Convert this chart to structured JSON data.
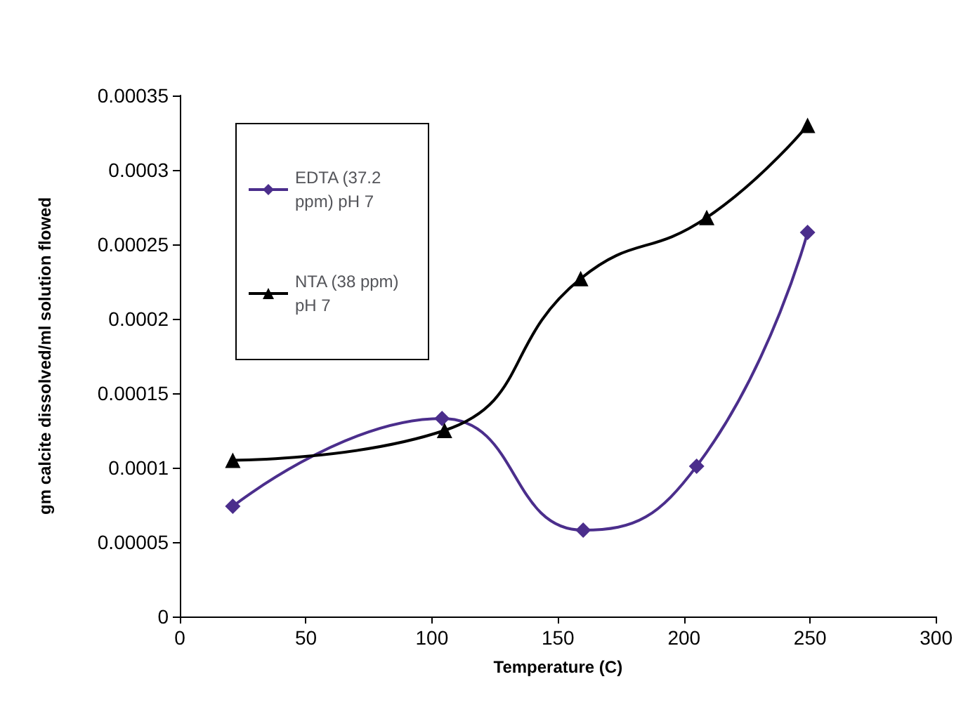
{
  "chart_data": {
    "type": "line",
    "xlabel": "Temperature (C)",
    "ylabel": "gm calcite dissolved/ml solution flowed",
    "xlim": [
      0,
      300
    ],
    "xticks": [
      0,
      50,
      100,
      150,
      200,
      250,
      300
    ],
    "ylim": [
      0,
      0.00035
    ],
    "yticks": [
      0,
      {
        "value": 5e-05,
        "label": "0.00005"
      },
      {
        "value": 0.0001,
        "label": "0.0001"
      },
      {
        "value": 0.00015,
        "label": "0.00015"
      },
      {
        "value": 0.0002,
        "label": "0.0002"
      },
      {
        "value": 0.00025,
        "label": "0.00025"
      },
      {
        "value": 0.0003,
        "label": "0.0003"
      },
      {
        "value": 0.00035,
        "label": "0.00035"
      }
    ],
    "grid": false,
    "legend": "top left",
    "series": [
      {
        "name": "EDTA (37.2 ppm) pH 7",
        "color": "#4b2e8c",
        "marker": "diamond",
        "x": [
          21,
          104,
          160,
          205,
          249
        ],
        "values": [
          7.4e-05,
          0.000133,
          5.8e-05,
          0.000101,
          0.000258
        ]
      },
      {
        "name": "NTA (38 ppm) pH 7",
        "color": "#000000",
        "marker": "triangle",
        "x": [
          21,
          105,
          159,
          209,
          249
        ],
        "values": [
          0.000105,
          0.000125,
          0.000227,
          0.000268,
          0.00033
        ]
      }
    ]
  }
}
